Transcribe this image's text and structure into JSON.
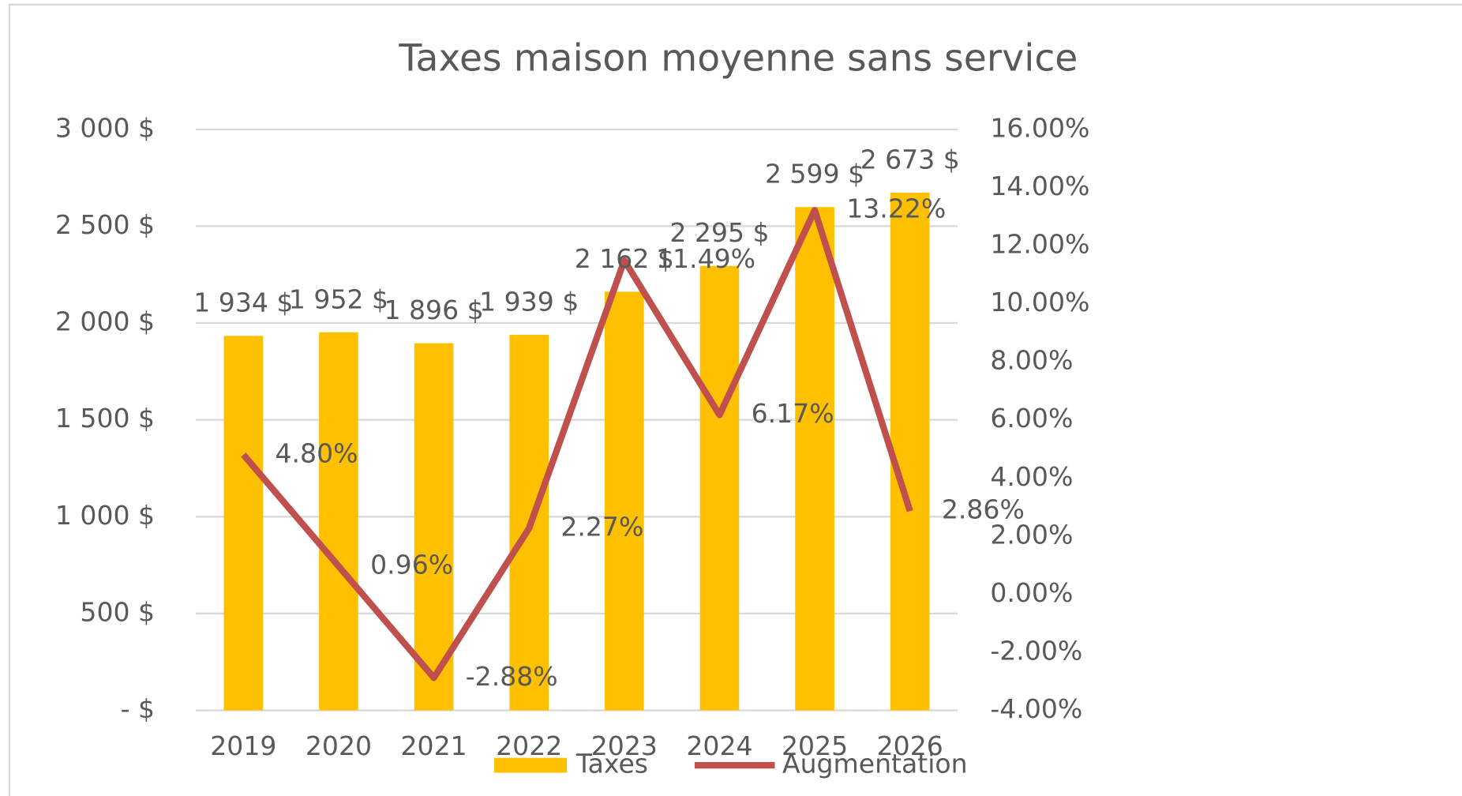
{
  "chart_data": {
    "type": "bar_line",
    "title": "Taxes maison moyenne sans service",
    "categories": [
      "2019",
      "2020",
      "2021",
      "2022",
      "2023",
      "2024",
      "2025",
      "2026"
    ],
    "series": [
      {
        "name": "Taxes",
        "color": "#ffc000",
        "type": "bar",
        "values": [
          1934,
          1952,
          1896,
          1939,
          2162,
          2295,
          2599,
          2673
        ],
        "value_labels": [
          "1 934 $",
          "1 952 $",
          "1 896 $",
          "1 939 $",
          "2 162 $",
          "2 295 $",
          "2 599 $",
          "2 673 $"
        ]
      },
      {
        "name": "Augmentation",
        "color": "#c0504d",
        "type": "line",
        "axis": "y2",
        "values": [
          4.8,
          0.96,
          -2.88,
          2.27,
          11.49,
          6.17,
          13.22,
          2.86
        ],
        "value_labels": [
          "4.80%",
          "0.96%",
          "-2.88%",
          "2.27%",
          "11.49%",
          "6.17%",
          "13.22%",
          "2.86%"
        ]
      }
    ],
    "ylim": [
      0,
      3000
    ],
    "yticks": [
      {
        "value": 0,
        "label": "-   $"
      },
      {
        "value": 500,
        "label": "500 $"
      },
      {
        "value": 1000,
        "label": "1 000 $"
      },
      {
        "value": 1500,
        "label": "1 500 $"
      },
      {
        "value": 2000,
        "label": "2 000 $"
      },
      {
        "value": 2500,
        "label": "2 500 $"
      },
      {
        "value": 3000,
        "label": "3 000 $"
      }
    ],
    "y2lim": [
      -4,
      16
    ],
    "y2ticks": [
      {
        "value": -4,
        "label": "-4.00%"
      },
      {
        "value": -2,
        "label": "-2.00%"
      },
      {
        "value": 0,
        "label": "0.00%"
      },
      {
        "value": 2,
        "label": "2.00%"
      },
      {
        "value": 4,
        "label": "4.00%"
      },
      {
        "value": 6,
        "label": "6.00%"
      },
      {
        "value": 8,
        "label": "8.00%"
      },
      {
        "value": 10,
        "label": "10.00%"
      },
      {
        "value": 12,
        "label": "12.00%"
      },
      {
        "value": 14,
        "label": "14.00%"
      },
      {
        "value": 16,
        "label": "16.00%"
      }
    ],
    "grid": true,
    "legend": "bottom"
  }
}
